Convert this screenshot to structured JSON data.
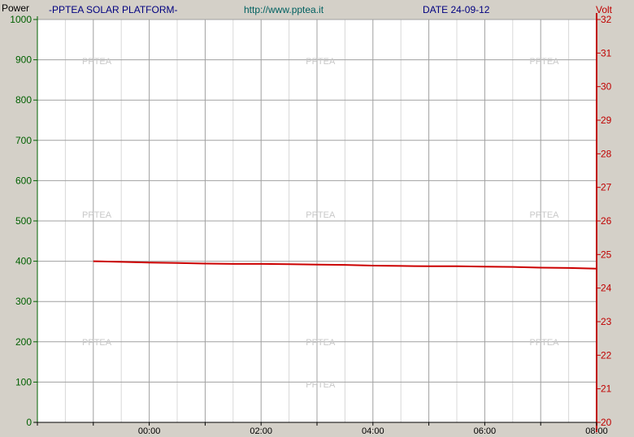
{
  "header": {
    "left_axis_unit": "Power",
    "title": "-PPTEA SOLAR PLATFORM-",
    "url": "http://www.pptea.it",
    "date": "DATE 24-09-12",
    "right_axis_unit": "Volt"
  },
  "watermark": "PPTEA",
  "colors": {
    "background": "#d4d0c8",
    "plot_background": "#ffffff",
    "left_axis": "#006000",
    "right_axis": "#c00000",
    "series": "#cc0000",
    "grid_major": "#a0a0a0",
    "grid_minor": "#d8d8d8"
  },
  "chart_data": {
    "type": "line",
    "x_ticks": [
      "00:00",
      "02:00",
      "04:00",
      "06:00",
      "08:00"
    ],
    "x_range_hours": [
      -2,
      8
    ],
    "y_left": {
      "label": "Power",
      "range": [
        0,
        1000
      ],
      "ticks": [
        "0",
        "100",
        "200",
        "300",
        "400",
        "500",
        "600",
        "700",
        "800",
        "900",
        "1000"
      ]
    },
    "y_right": {
      "label": "Volt",
      "range": [
        20,
        32
      ],
      "ticks": [
        "20",
        "21",
        "22",
        "23",
        "24",
        "25",
        "26",
        "27",
        "28",
        "29",
        "30",
        "31",
        "32"
      ]
    },
    "grid": true,
    "series": [
      {
        "axis": "right",
        "color": "#cc0000",
        "x_hours": [
          -1.0,
          -0.5,
          0.0,
          0.5,
          1.0,
          1.5,
          2.0,
          2.5,
          3.0,
          3.5,
          4.0,
          4.5,
          5.0,
          5.5,
          6.0,
          6.5,
          7.0,
          7.5,
          8.0
        ],
        "y": [
          24.8,
          24.78,
          24.76,
          24.75,
          24.73,
          24.72,
          24.72,
          24.71,
          24.7,
          24.69,
          24.67,
          24.66,
          24.65,
          24.65,
          24.64,
          24.63,
          24.61,
          24.6,
          24.58
        ]
      }
    ]
  }
}
